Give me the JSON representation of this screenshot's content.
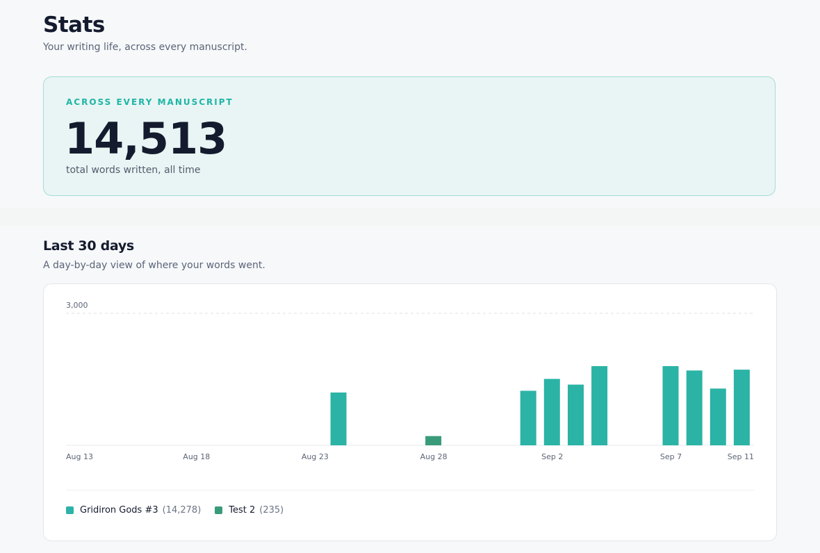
{
  "header": {
    "title": "Stats",
    "subtitle": "Your writing life, across every manuscript."
  },
  "total": {
    "eyebrow": "ACROSS EVERY MANUSCRIPT",
    "value": "14,513",
    "caption": "total words written, all time"
  },
  "section": {
    "title": "Last 30 days",
    "subtitle": "A day-by-day view of where your words went."
  },
  "colors": {
    "accent": "#1fb5a5",
    "series_gridiron": "#2bb3a6",
    "series_test2": "#3a9b7b"
  },
  "legend": [
    {
      "name": "Gridiron Gods #3",
      "count": "(14,278)",
      "color": "#2bb3a6"
    },
    {
      "name": "Test 2",
      "count": "(235)",
      "color": "#3a9b7b"
    }
  ],
  "chart_data": {
    "type": "bar",
    "stacked": true,
    "categories": [
      "Aug 13",
      "Aug 14",
      "Aug 15",
      "Aug 16",
      "Aug 17",
      "Aug 18",
      "Aug 19",
      "Aug 20",
      "Aug 21",
      "Aug 22",
      "Aug 23",
      "Aug 24",
      "Aug 25",
      "Aug 26",
      "Aug 27",
      "Aug 28",
      "Aug 29",
      "Aug 30",
      "Aug 31",
      "Sep 1",
      "Sep 2",
      "Sep 3",
      "Sep 4",
      "Sep 5",
      "Sep 6",
      "Sep 7",
      "Sep 8",
      "Sep 9",
      "Sep 10",
      "Sep 11"
    ],
    "series": [
      {
        "name": "Gridiron Gods #3",
        "values": [
          0,
          0,
          0,
          0,
          0,
          0,
          0,
          0,
          0,
          0,
          0,
          1200,
          0,
          0,
          0,
          0,
          0,
          0,
          0,
          1240,
          1510,
          1380,
          1800,
          0,
          0,
          1800,
          1700,
          1290,
          1720,
          0
        ]
      },
      {
        "name": "Test 2",
        "values": [
          0,
          0,
          0,
          0,
          0,
          0,
          0,
          0,
          0,
          0,
          0,
          0,
          0,
          0,
          0,
          210,
          0,
          0,
          0,
          0,
          0,
          0,
          0,
          0,
          0,
          0,
          0,
          0,
          0,
          0
        ]
      }
    ],
    "x_tick_labels": [
      "Aug 13",
      "Aug 18",
      "Aug 23",
      "Aug 28",
      "Sep 2",
      "Sep 7",
      "Sep 11"
    ],
    "y_tick_label": "3,000",
    "ylim": [
      0,
      3000
    ],
    "grid": "dashed line at max",
    "legend_position": "bottom-left"
  }
}
